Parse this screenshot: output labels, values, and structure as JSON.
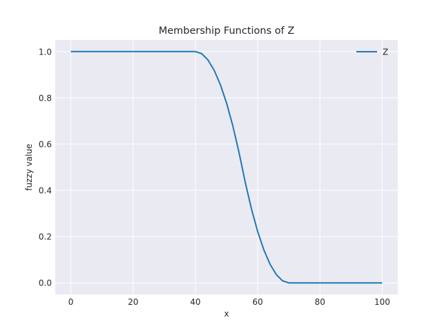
{
  "chart_data": {
    "type": "line",
    "title": "Membership Functions of Z",
    "xlabel": "x",
    "ylabel": "fuzzy value",
    "xlim": [
      -5,
      105
    ],
    "ylim": [
      -0.05,
      1.05
    ],
    "xticks": [
      0,
      20,
      40,
      60,
      80,
      100
    ],
    "yticks": [
      0.0,
      0.2,
      0.4,
      0.6,
      0.8,
      1.0
    ],
    "xtick_labels": [
      "0",
      "20",
      "40",
      "60",
      "80",
      "100"
    ],
    "ytick_labels": [
      "0.0",
      "0.2",
      "0.4",
      "0.6",
      "0.8",
      "1.0"
    ],
    "grid": true,
    "legend_position": "top-right",
    "series": [
      {
        "name": "Z",
        "color": "#1f77b4",
        "x": [
          0,
          10,
          20,
          30,
          40,
          42,
          44,
          46,
          48,
          50,
          52,
          54,
          55,
          56,
          58,
          60,
          62,
          64,
          66,
          68,
          70,
          80,
          90,
          100
        ],
        "y": [
          1.0,
          1.0,
          1.0,
          1.0,
          1.0,
          0.9911,
          0.9644,
          0.92,
          0.8578,
          0.7778,
          0.68,
          0.5644,
          0.5,
          0.4356,
          0.32,
          0.2222,
          0.1422,
          0.08,
          0.0356,
          0.0089,
          0.0,
          0.0,
          0.0,
          0.0
        ]
      }
    ]
  }
}
